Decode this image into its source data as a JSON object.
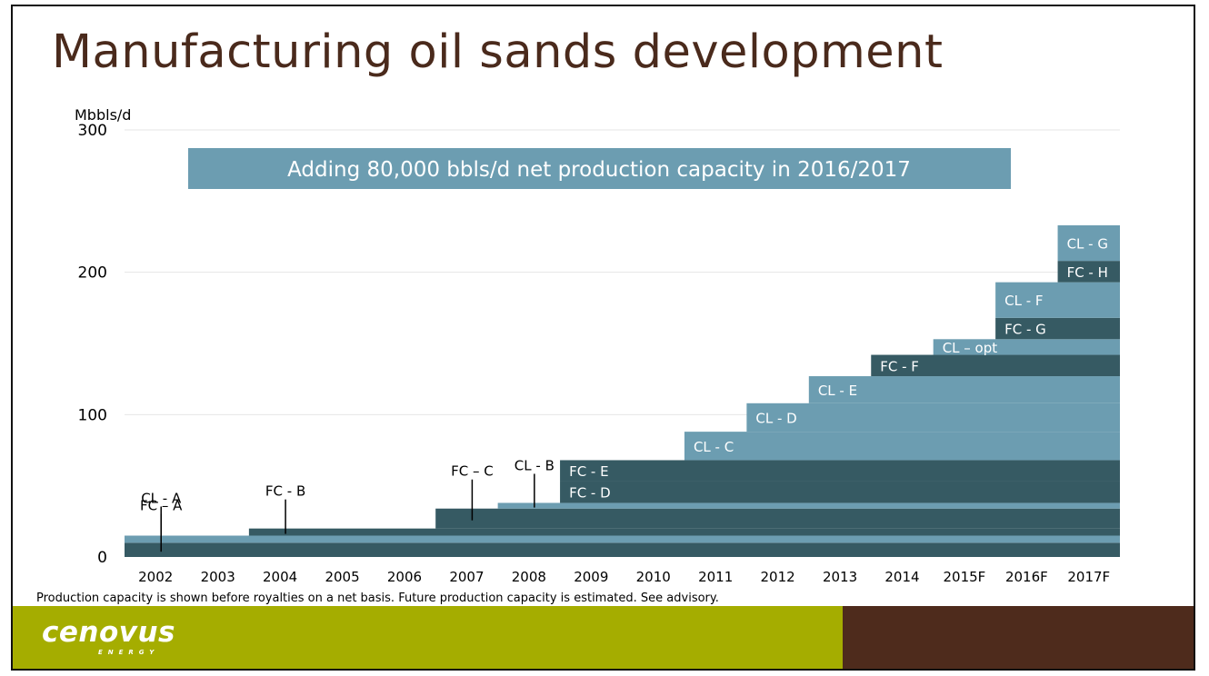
{
  "slide": {
    "title": "Manufacturing oil sands development",
    "footnote": "Production capacity is shown before royalties on a net basis. Future production capacity is estimated. See advisory.",
    "logo_text": "cenovus",
    "logo_subtext": "ENERGY"
  },
  "colors": {
    "title": "#4a2a1c",
    "dark_series": "#365a63",
    "light_series": "#6c9db1",
    "banner": "#6c9db1",
    "footer_left": "#a5ad00",
    "footer_right": "#4e2b1c"
  },
  "chart_data": {
    "type": "area",
    "style": "stepped stacked area",
    "title": "",
    "xlabel": "",
    "ylabel": "Mbbls/d",
    "ylim": [
      0,
      300
    ],
    "yticks": [
      0,
      100,
      200,
      300
    ],
    "grid": true,
    "legend": "none",
    "categories": [
      "2002",
      "2003",
      "2004",
      "2005",
      "2006",
      "2007",
      "2008",
      "2009",
      "2010",
      "2011",
      "2012",
      "2013",
      "2014",
      "2015F",
      "2016F",
      "2017F"
    ],
    "banner": "Adding 80,000 bbls/d net production capacity in 2016/2017",
    "layers": [
      {
        "name": "FC – A",
        "kind": "dark",
        "start": "2002",
        "thickness": 10
      },
      {
        "name": "CL - A",
        "kind": "light",
        "start": "2002",
        "thickness": 5
      },
      {
        "name": "FC - B",
        "kind": "dark",
        "start": "2004",
        "thickness": 5
      },
      {
        "name": "FC – C",
        "kind": "dark",
        "start": "2007",
        "thickness": 14
      },
      {
        "name": "CL - B",
        "kind": "light",
        "start": "2008",
        "thickness": 4
      },
      {
        "name": "FC - D",
        "kind": "dark",
        "start": "2009",
        "thickness": 15
      },
      {
        "name": "FC - E",
        "kind": "dark",
        "start": "2009",
        "thickness": 15
      },
      {
        "name": "CL - C",
        "kind": "light",
        "start": "2011",
        "thickness": 20
      },
      {
        "name": "CL - D",
        "kind": "light",
        "start": "2012",
        "thickness": 20
      },
      {
        "name": "CL - E",
        "kind": "light",
        "start": "2013",
        "thickness": 19
      },
      {
        "name": "FC - F",
        "kind": "dark",
        "start": "2014",
        "thickness": 15
      },
      {
        "name": "CL – opt",
        "kind": "light",
        "start": "2015F",
        "thickness": 11
      },
      {
        "name": "FC - G",
        "kind": "dark",
        "start": "2016F",
        "thickness": 15
      },
      {
        "name": "CL - F",
        "kind": "light",
        "start": "2016F",
        "thickness": 25
      },
      {
        "name": "FC - H",
        "kind": "dark",
        "start": "2017F",
        "thickness": 15
      },
      {
        "name": "CL - G",
        "kind": "light",
        "start": "2017F",
        "thickness": 25
      }
    ]
  }
}
